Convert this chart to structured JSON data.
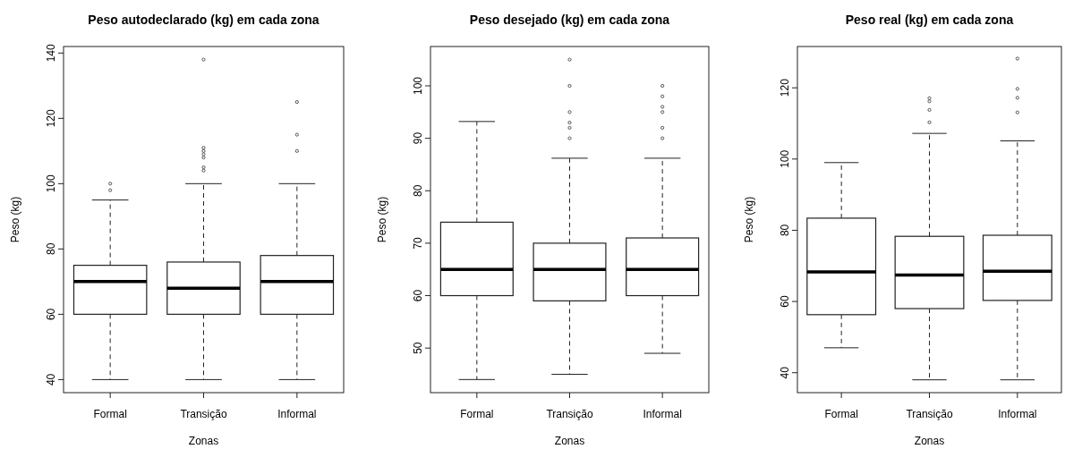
{
  "chart_data": [
    {
      "type": "box",
      "title": "Peso autodeclarado (kg) em cada zona",
      "xlabel": "Zonas",
      "ylabel": "Peso (kg)",
      "categories": [
        "Formal",
        "Transição",
        "Informal"
      ],
      "ylim": [
        36,
        142
      ],
      "yticks": [
        40,
        60,
        80,
        100,
        120,
        140
      ],
      "boxes": [
        {
          "low": 40,
          "q1": 60,
          "median": 70,
          "q3": 75,
          "high": 95,
          "outliers": [
            98,
            100
          ]
        },
        {
          "low": 40,
          "q1": 60,
          "median": 68,
          "q3": 76,
          "high": 100,
          "outliers": [
            104,
            105,
            108,
            109,
            110,
            111,
            138
          ]
        },
        {
          "low": 40,
          "q1": 60,
          "median": 70,
          "q3": 78,
          "high": 100,
          "outliers": [
            110,
            115,
            125
          ]
        }
      ]
    },
    {
      "type": "box",
      "title": "Peso desejado (kg) em cada zona",
      "xlabel": "Zonas",
      "ylabel": "Peso (kg)",
      "categories": [
        "Formal",
        "Transição",
        "Informal"
      ],
      "ylim": [
        41.5,
        107.5
      ],
      "yticks": [
        50,
        60,
        70,
        80,
        90,
        100
      ],
      "boxes": [
        {
          "low": 44,
          "q1": 60,
          "median": 65,
          "q3": 74,
          "high": 93.2
        },
        {
          "low": 45,
          "q1": 59,
          "median": 65,
          "q3": 70,
          "high": 86.2,
          "outliers": [
            90,
            92,
            93,
            95,
            100,
            105
          ]
        },
        {
          "low": 49,
          "q1": 60,
          "median": 65,
          "q3": 71,
          "high": 86.2,
          "outliers": [
            90,
            92,
            95,
            96,
            98,
            100
          ]
        }
      ]
    },
    {
      "type": "box",
      "title": "Peso real (kg) em cada zona",
      "xlabel": "Zonas",
      "ylabel": "Peso (kg)",
      "categories": [
        "Formal",
        "Transição",
        "Informal"
      ],
      "ylim": [
        34.4,
        131.6
      ],
      "yticks": [
        40,
        60,
        80,
        100,
        120
      ],
      "boxes": [
        {
          "low": 47,
          "q1": 56.3,
          "median": 68.3,
          "q3": 83.4,
          "high": 99
        },
        {
          "low": 38,
          "q1": 58,
          "median": 67.4,
          "q3": 78.3,
          "high": 107.2,
          "outliers": [
            110.3,
            113.8,
            116.2,
            117.1
          ]
        },
        {
          "low": 38,
          "q1": 60.3,
          "median": 68.5,
          "q3": 78.6,
          "high": 105.1,
          "outliers": [
            113.1,
            117.2,
            119.7,
            128.2
          ]
        }
      ]
    }
  ]
}
